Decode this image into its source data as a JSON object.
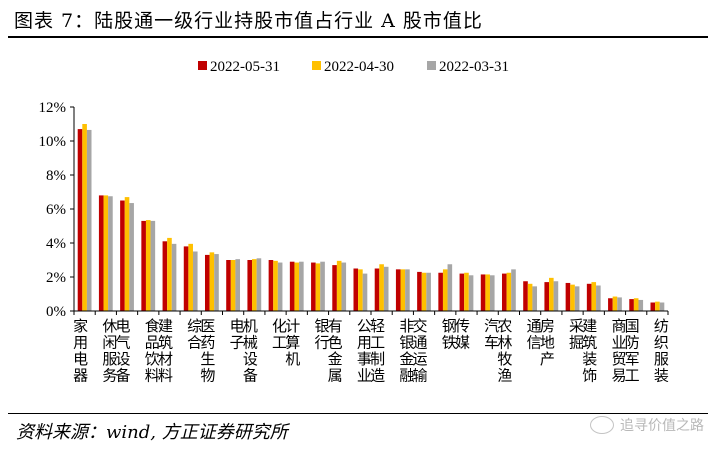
{
  "title": "图表 7：陆股通一级行业持股市值占行业 A 股市值比",
  "source": "资料来源：wind, 方正证券研究所",
  "watermark": "追寻价值之路",
  "colors": {
    "s1": "#c00000",
    "s2": "#ffc000",
    "s3": "#a6a6a6"
  },
  "chart_data": {
    "type": "bar",
    "legend_position": "top-center",
    "ylim": [
      0,
      12
    ],
    "yticks": [
      "0%",
      "2%",
      "4%",
      "6%",
      "8%",
      "10%",
      "12%"
    ],
    "categories": [
      "家用电器",
      "休闲服务",
      "电气设备",
      "食品饮料",
      "建筑材料",
      "综合",
      "医药生物",
      "电子",
      "机械设备",
      "化工",
      "计算机",
      "银行",
      "有色金属",
      "公用事业",
      "轻工制造",
      "非银金融",
      "交通运输",
      "钢铁",
      "传媒",
      "汽车",
      "农林牧渔",
      "通信",
      "房地产",
      "采掘",
      "建筑装饰",
      "商业贸易",
      "国防军工",
      "纺织服装"
    ],
    "series": [
      {
        "name": "2022-05-31",
        "values": [
          10.7,
          6.8,
          6.5,
          5.3,
          4.1,
          3.8,
          3.3,
          3.0,
          3.0,
          3.0,
          2.9,
          2.85,
          2.7,
          2.5,
          2.5,
          2.45,
          2.3,
          2.25,
          2.2,
          2.15,
          2.2,
          1.75,
          1.7,
          1.65,
          1.6,
          0.75,
          0.7,
          0.5
        ]
      },
      {
        "name": "2022-04-30",
        "values": [
          11.0,
          6.8,
          6.7,
          5.35,
          4.3,
          3.95,
          3.45,
          3.0,
          3.05,
          2.95,
          2.85,
          2.8,
          2.95,
          2.45,
          2.75,
          2.45,
          2.25,
          2.45,
          2.25,
          2.15,
          2.25,
          1.6,
          1.95,
          1.55,
          1.7,
          0.85,
          0.75,
          0.55
        ]
      },
      {
        "name": "2022-03-31",
        "values": [
          10.65,
          6.75,
          6.35,
          5.3,
          3.95,
          3.5,
          3.35,
          3.05,
          3.1,
          2.85,
          2.9,
          2.9,
          2.85,
          2.2,
          2.6,
          2.45,
          2.25,
          2.75,
          2.1,
          2.1,
          2.45,
          1.45,
          1.75,
          1.45,
          1.5,
          0.8,
          0.65,
          0.5
        ]
      }
    ]
  }
}
